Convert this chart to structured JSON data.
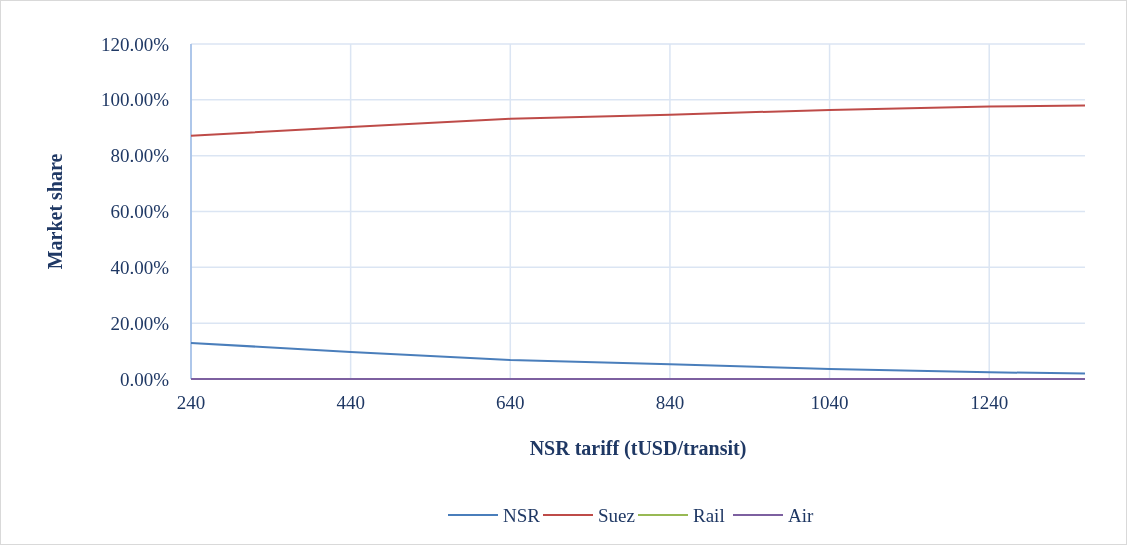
{
  "chart_data": {
    "type": "line",
    "xlabel": "NSR tariff (tUSD/transit)",
    "ylabel": "Market share",
    "x": [
      240,
      440,
      640,
      840,
      1040,
      1240,
      1360
    ],
    "series": [
      {
        "name": "NSR",
        "color": "#4a7ebb",
        "values": [
          12.9,
          9.7,
          6.8,
          5.3,
          3.6,
          2.4,
          2.0
        ]
      },
      {
        "name": "Suez",
        "color": "#be4b48",
        "values": [
          87.1,
          90.3,
          93.2,
          94.7,
          96.4,
          97.6,
          98.0
        ]
      },
      {
        "name": "Rail",
        "color": "#98b954",
        "values": [
          null,
          null,
          null,
          null,
          null,
          null,
          null
        ]
      },
      {
        "name": "Air",
        "color": "#7d60a0",
        "values": [
          0,
          0,
          0,
          0,
          0,
          0,
          0
        ]
      }
    ],
    "xlim": [
      240,
      1360
    ],
    "xticks": [
      240,
      440,
      640,
      840,
      1040,
      1240
    ],
    "ylim": [
      0,
      120
    ],
    "yticks": [
      {
        "value": 0,
        "label": "0.00%"
      },
      {
        "value": 20,
        "label": "20.00%"
      },
      {
        "value": 40,
        "label": "40.00%"
      },
      {
        "value": 60,
        "label": "60.00%"
      },
      {
        "value": 80,
        "label": "80.00%"
      },
      {
        "value": 100,
        "label": "100.00%"
      },
      {
        "value": 120,
        "label": "120.00%"
      }
    ],
    "grid": true,
    "legend": "bottom",
    "marker": "none",
    "line_style": "solid"
  }
}
